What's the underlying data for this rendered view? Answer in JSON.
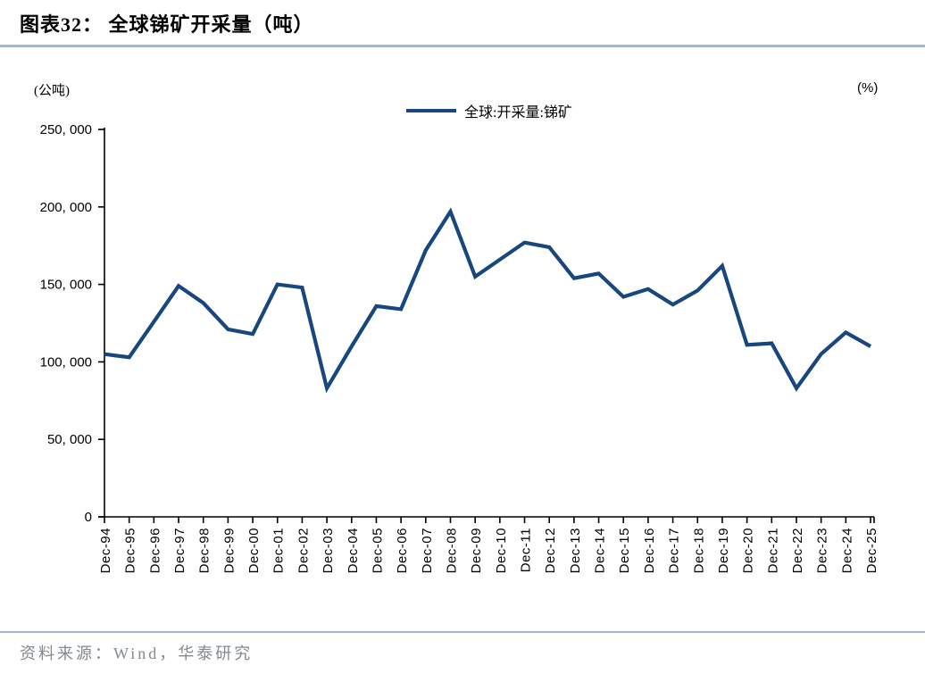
{
  "header": {
    "title": "图表32：  全球锑矿开采量（吨）"
  },
  "chart_data": {
    "type": "line",
    "title": "全球锑矿开采量（吨）",
    "unit_left": "(公吨)",
    "unit_right": "(%)",
    "legend_position": "top-center",
    "grid": false,
    "line_color": "#17477e",
    "ylim": [
      0,
      250000
    ],
    "y_ticks": [
      {
        "value": 0,
        "label": "0"
      },
      {
        "value": 50000,
        "label": "50, 000"
      },
      {
        "value": 100000,
        "label": "100, 000"
      },
      {
        "value": 150000,
        "label": "150, 000"
      },
      {
        "value": 200000,
        "label": "200, 000"
      },
      {
        "value": 250000,
        "label": "250, 000"
      }
    ],
    "categories": [
      "Dec-94",
      "Dec-95",
      "Dec-96",
      "Dec-97",
      "Dec-98",
      "Dec-99",
      "Dec-00",
      "Dec-01",
      "Dec-02",
      "Dec-03",
      "Dec-04",
      "Dec-05",
      "Dec-06",
      "Dec-07",
      "Dec-08",
      "Dec-09",
      "Dec-10",
      "Dec-11",
      "Dec-12",
      "Dec-13",
      "Dec-14",
      "Dec-15",
      "Dec-16",
      "Dec-17",
      "Dec-18",
      "Dec-19",
      "Dec-20",
      "Dec-21",
      "Dec-22",
      "Dec-23",
      "Dec-24",
      "Dec-25"
    ],
    "series": [
      {
        "name": "全球:开采量:锑矿",
        "color": "#17477e",
        "values": [
          105000,
          103000,
          126000,
          149000,
          138000,
          121000,
          118000,
          150000,
          148000,
          83000,
          110000,
          136000,
          134000,
          172000,
          197000,
          155000,
          166000,
          177000,
          174000,
          154000,
          157000,
          142000,
          147000,
          137000,
          146000,
          162000,
          111000,
          112000,
          83000,
          105000,
          119000,
          110000
        ]
      }
    ]
  },
  "footer": {
    "source": "资料来源：Wind，华泰研究"
  }
}
